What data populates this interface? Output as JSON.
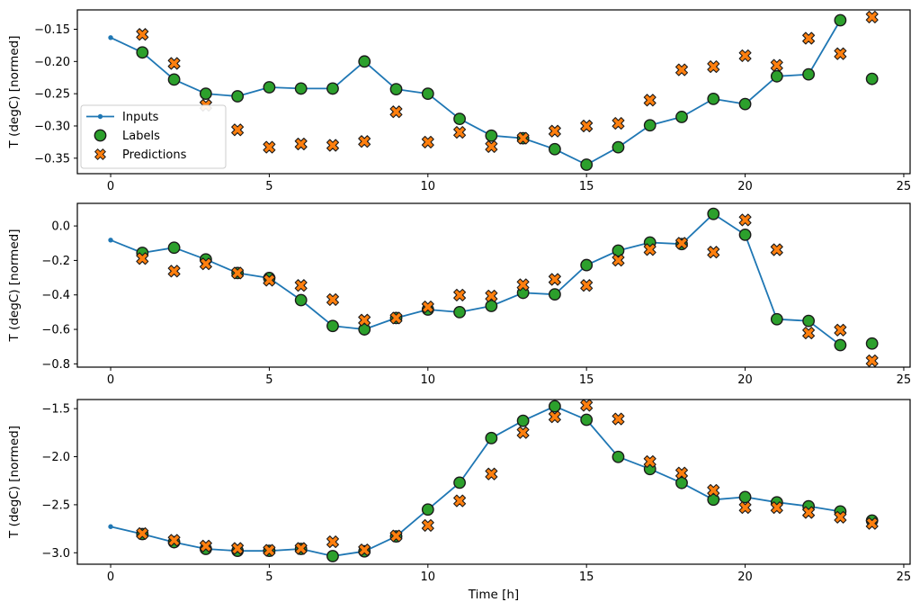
{
  "figure": {
    "xlabel": "Time [h]",
    "ylabel": "T (degC) [normed]",
    "background": "#ffffff",
    "colors": {
      "inputs": "#1f77b4",
      "labels": "#2ca02c",
      "predictions": "#ff7f0e",
      "marker_edge": "#1a1a1a",
      "spine": "#000000",
      "legend_border": "#cccccc"
    },
    "legend": {
      "items": [
        "Inputs",
        "Labels",
        "Predictions"
      ]
    }
  },
  "chart_data": [
    {
      "type": "line",
      "ylabel": "T (degC) [normed]",
      "xlabel": "",
      "xlim": [
        -1.05,
        25.2
      ],
      "ylim": [
        -0.374,
        -0.12
      ],
      "xticks": {
        "values": [
          0,
          5,
          10,
          15,
          20,
          25
        ],
        "labels": [
          "0",
          "5",
          "10",
          "15",
          "20",
          "25"
        ]
      },
      "yticks": {
        "values": [
          -0.15,
          -0.2,
          -0.25,
          -0.3,
          -0.35
        ],
        "labels": [
          "−0.15",
          "−0.20",
          "−0.25",
          "−0.30",
          "−0.35"
        ]
      },
      "legend": true,
      "grid": false,
      "series": [
        {
          "name": "Inputs",
          "type": "line",
          "x": [
            0,
            1,
            2,
            3,
            4,
            5,
            6,
            7,
            8,
            9,
            10,
            11,
            12,
            13,
            14,
            15,
            16,
            17,
            18,
            19,
            20,
            21,
            22,
            23
          ],
          "y": [
            -0.163,
            -0.186,
            -0.228,
            -0.25,
            -0.254,
            -0.24,
            -0.242,
            -0.242,
            -0.2,
            -0.243,
            -0.25,
            -0.289,
            -0.315,
            -0.319,
            -0.336,
            -0.36,
            -0.333,
            -0.299,
            -0.286,
            -0.258,
            -0.266,
            -0.223,
            -0.22,
            -0.136
          ]
        },
        {
          "name": "Labels",
          "type": "scatter_circle",
          "x": [
            1,
            2,
            3,
            4,
            5,
            6,
            7,
            8,
            9,
            10,
            11,
            12,
            13,
            14,
            15,
            16,
            17,
            18,
            19,
            20,
            21,
            22,
            23,
            24
          ],
          "y": [
            -0.186,
            -0.228,
            -0.25,
            -0.254,
            -0.24,
            -0.242,
            -0.242,
            -0.2,
            -0.243,
            -0.25,
            -0.289,
            -0.315,
            -0.319,
            -0.336,
            -0.36,
            -0.333,
            -0.299,
            -0.286,
            -0.258,
            -0.266,
            -0.223,
            -0.22,
            -0.136,
            -0.227
          ]
        },
        {
          "name": "Predictions",
          "type": "scatter_x",
          "x": [
            1,
            2,
            3,
            4,
            5,
            6,
            7,
            8,
            9,
            10,
            11,
            12,
            13,
            14,
            15,
            16,
            17,
            18,
            19,
            20,
            21,
            22,
            23,
            24
          ],
          "y": [
            -0.158,
            -0.203,
            -0.268,
            -0.306,
            -0.333,
            -0.328,
            -0.33,
            -0.324,
            -0.278,
            -0.325,
            -0.31,
            -0.332,
            -0.319,
            -0.308,
            -0.3,
            -0.296,
            -0.26,
            -0.213,
            -0.208,
            -0.191,
            -0.206,
            -0.164,
            -0.188,
            -0.131
          ]
        }
      ]
    },
    {
      "type": "line",
      "ylabel": "T (degC) [normed]",
      "xlabel": "",
      "xlim": [
        -1.05,
        25.2
      ],
      "ylim": [
        -0.819,
        0.131
      ],
      "xticks": {
        "values": [
          0,
          5,
          10,
          15,
          20,
          25
        ],
        "labels": [
          "0",
          "5",
          "10",
          "15",
          "20",
          "25"
        ]
      },
      "yticks": {
        "values": [
          0.0,
          -0.2,
          -0.4,
          -0.6,
          -0.8
        ],
        "labels": [
          "0.0",
          "−0.2",
          "−0.4",
          "−0.6",
          "−0.8"
        ]
      },
      "legend": false,
      "grid": false,
      "series": [
        {
          "name": "Inputs",
          "type": "line",
          "x": [
            0,
            1,
            2,
            3,
            4,
            5,
            6,
            7,
            8,
            9,
            10,
            11,
            12,
            13,
            14,
            15,
            16,
            17,
            18,
            19,
            20,
            21,
            22,
            23
          ],
          "y": [
            -0.082,
            -0.156,
            -0.126,
            -0.194,
            -0.273,
            -0.302,
            -0.43,
            -0.58,
            -0.6,
            -0.534,
            -0.485,
            -0.5,
            -0.464,
            -0.388,
            -0.397,
            -0.227,
            -0.143,
            -0.096,
            -0.105,
            0.07,
            -0.051,
            -0.541,
            -0.551,
            -0.691
          ]
        },
        {
          "name": "Labels",
          "type": "scatter_circle",
          "x": [
            1,
            2,
            3,
            4,
            5,
            6,
            7,
            8,
            9,
            10,
            11,
            12,
            13,
            14,
            15,
            16,
            17,
            18,
            19,
            20,
            21,
            22,
            23,
            24
          ],
          "y": [
            -0.156,
            -0.126,
            -0.194,
            -0.273,
            -0.302,
            -0.43,
            -0.58,
            -0.6,
            -0.534,
            -0.485,
            -0.5,
            -0.464,
            -0.388,
            -0.397,
            -0.227,
            -0.143,
            -0.096,
            -0.105,
            0.07,
            -0.051,
            -0.541,
            -0.551,
            -0.691,
            -0.682
          ]
        },
        {
          "name": "Predictions",
          "type": "scatter_x",
          "x": [
            1,
            2,
            3,
            4,
            5,
            6,
            7,
            8,
            9,
            10,
            11,
            12,
            13,
            14,
            15,
            16,
            17,
            18,
            19,
            20,
            21,
            22,
            23,
            24
          ],
          "y": [
            -0.189,
            -0.262,
            -0.22,
            -0.273,
            -0.315,
            -0.345,
            -0.427,
            -0.546,
            -0.534,
            -0.47,
            -0.401,
            -0.406,
            -0.341,
            -0.31,
            -0.345,
            -0.199,
            -0.137,
            -0.1,
            -0.152,
            0.035,
            -0.138,
            -0.621,
            -0.604,
            -0.782
          ]
        }
      ]
    },
    {
      "type": "line",
      "ylabel": "T (degC) [normed]",
      "xlabel": "Time [h]",
      "xlim": [
        -1.05,
        25.2
      ],
      "ylim": [
        -3.119,
        -1.405
      ],
      "xticks": {
        "values": [
          0,
          5,
          10,
          15,
          20,
          25
        ],
        "labels": [
          "0",
          "5",
          "10",
          "15",
          "20",
          "25"
        ]
      },
      "yticks": {
        "values": [
          -1.5,
          -2.0,
          -2.5,
          -3.0
        ],
        "labels": [
          "−1.5",
          "−2.0",
          "−2.5",
          "−3.0"
        ]
      },
      "legend": false,
      "grid": false,
      "series": [
        {
          "name": "Inputs",
          "type": "line",
          "x": [
            0,
            1,
            2,
            3,
            4,
            5,
            6,
            7,
            8,
            9,
            10,
            11,
            12,
            13,
            14,
            15,
            16,
            17,
            18,
            19,
            20,
            21,
            22,
            23
          ],
          "y": [
            -2.728,
            -2.805,
            -2.89,
            -2.96,
            -2.98,
            -2.98,
            -2.96,
            -3.035,
            -2.985,
            -2.83,
            -2.55,
            -2.27,
            -1.806,
            -1.626,
            -1.475,
            -1.616,
            -2.002,
            -2.128,
            -2.273,
            -2.447,
            -2.42,
            -2.475,
            -2.516,
            -2.57
          ]
        },
        {
          "name": "Labels",
          "type": "scatter_circle",
          "x": [
            1,
            2,
            3,
            4,
            5,
            6,
            7,
            8,
            9,
            10,
            11,
            12,
            13,
            14,
            15,
            16,
            17,
            18,
            19,
            20,
            21,
            22,
            23,
            24
          ],
          "y": [
            -2.805,
            -2.89,
            -2.96,
            -2.98,
            -2.98,
            -2.96,
            -3.035,
            -2.985,
            -2.83,
            -2.55,
            -2.27,
            -1.806,
            -1.626,
            -1.475,
            -1.616,
            -2.002,
            -2.128,
            -2.273,
            -2.447,
            -2.42,
            -2.475,
            -2.516,
            -2.57,
            -2.665
          ]
        },
        {
          "name": "Predictions",
          "type": "scatter_x",
          "x": [
            1,
            2,
            3,
            4,
            5,
            6,
            7,
            8,
            9,
            10,
            11,
            12,
            13,
            14,
            15,
            16,
            17,
            18,
            19,
            20,
            21,
            22,
            23,
            24
          ],
          "y": [
            -2.8,
            -2.87,
            -2.93,
            -2.955,
            -2.975,
            -2.955,
            -2.886,
            -2.97,
            -2.825,
            -2.715,
            -2.46,
            -2.18,
            -1.749,
            -1.585,
            -1.465,
            -1.607,
            -2.05,
            -2.17,
            -2.35,
            -2.53,
            -2.53,
            -2.58,
            -2.63,
            -2.695
          ]
        }
      ]
    }
  ]
}
